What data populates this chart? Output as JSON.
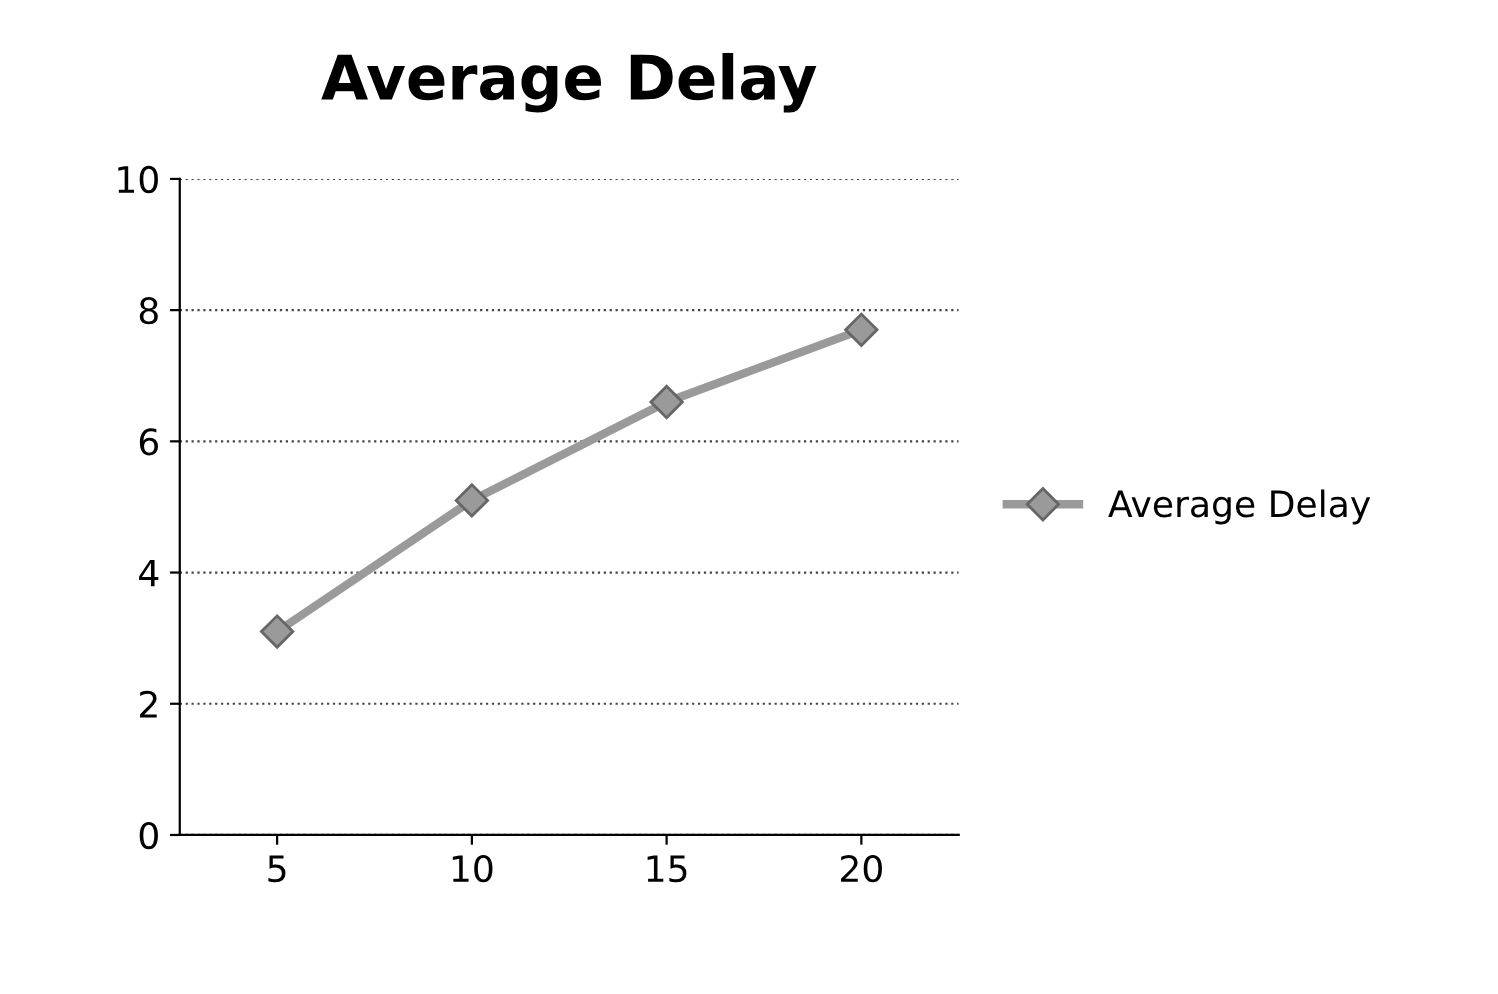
{
  "chart_data": {
    "type": "line",
    "title": "Average Delay",
    "categories": [
      "5",
      "10",
      "15",
      "20"
    ],
    "series": [
      {
        "name": "Average Delay",
        "color": "#9a9a9a",
        "values": [
          3.1,
          5.1,
          6.6,
          7.7
        ]
      }
    ],
    "ylim": [
      0,
      10
    ],
    "yticks": [
      0,
      2,
      4,
      6,
      8,
      10
    ],
    "grid": "y",
    "legend": "right",
    "marker": "diamond",
    "line_style": "solid"
  }
}
